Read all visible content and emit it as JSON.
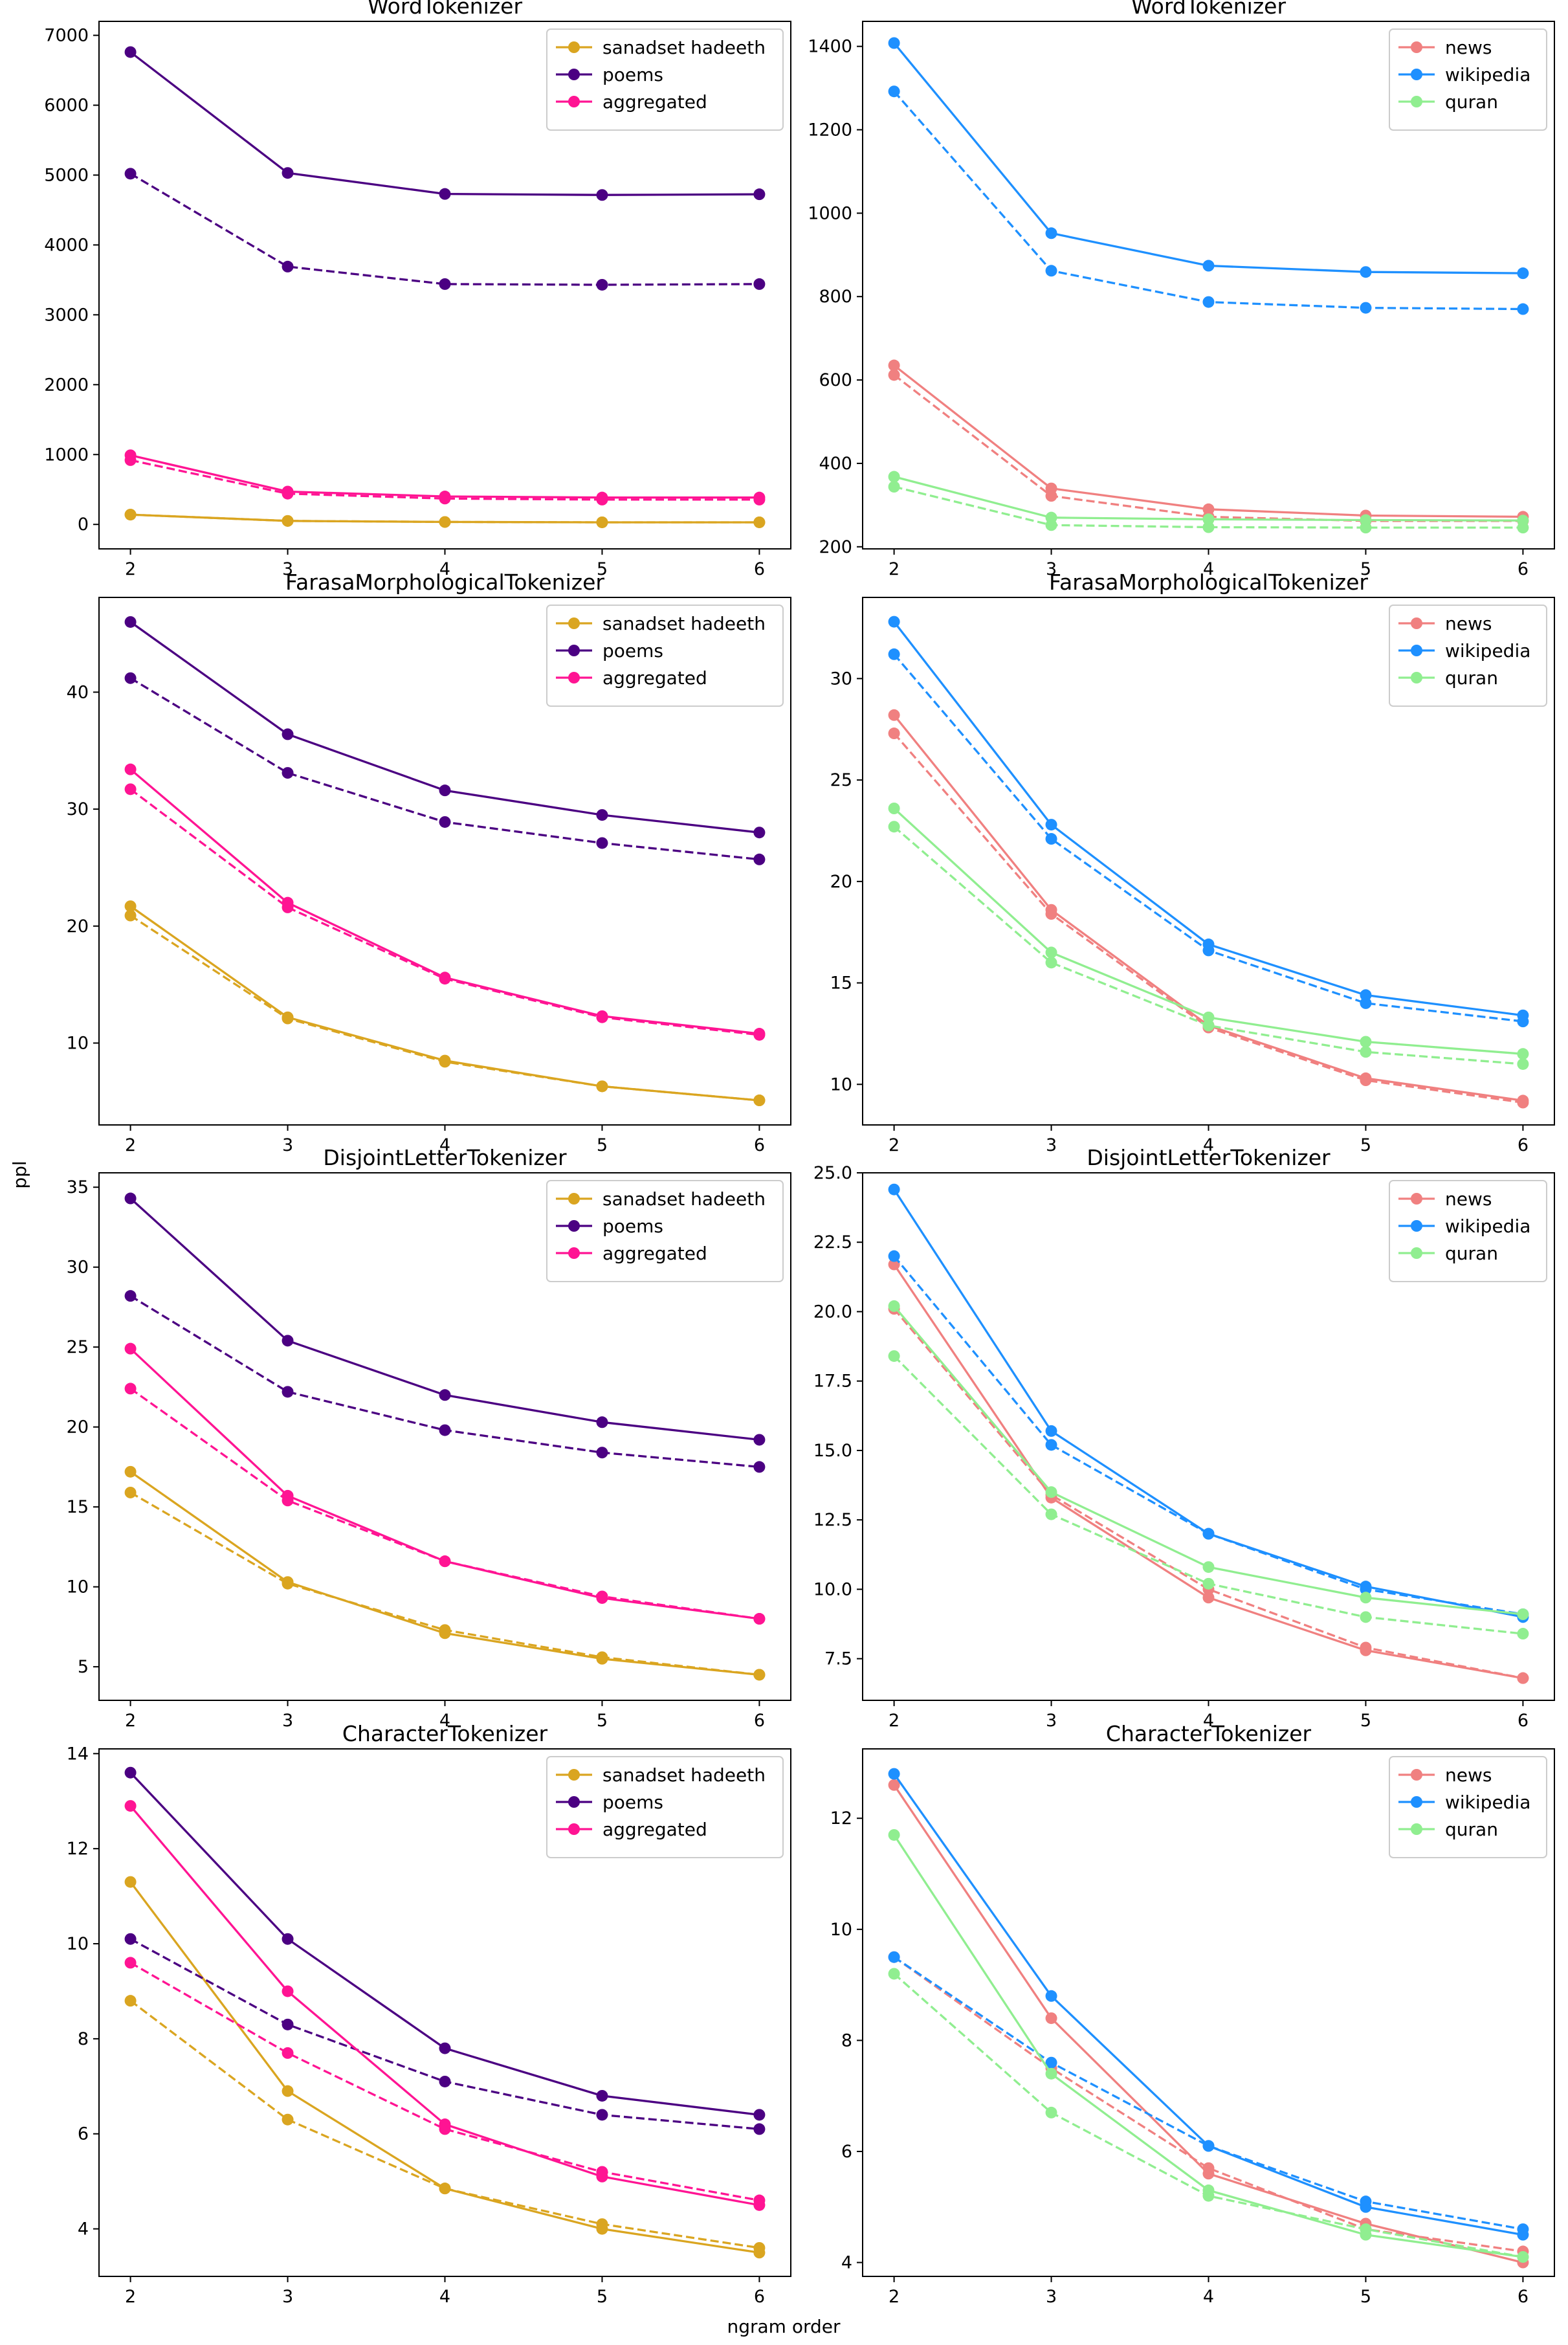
{
  "figure": {
    "ylabel": "ppl",
    "xlabel": "ngram order"
  },
  "chart_data": [
    {
      "type": "line",
      "title": "WordTokenizer",
      "x": [
        2,
        3,
        4,
        5,
        6
      ],
      "ylim": [
        -350,
        7200
      ],
      "yticks": [
        0,
        1000,
        2000,
        3000,
        4000,
        5000,
        6000,
        7000
      ],
      "series": [
        {
          "name": "sanadset hadeeth",
          "color": "#DAA520",
          "style": "solid",
          "values": [
            140,
            50,
            35,
            30,
            30
          ]
        },
        {
          "name": "sanadset hadeeth",
          "color": "#DAA520",
          "style": "dashed",
          "values": [
            140,
            50,
            35,
            30,
            30
          ]
        },
        {
          "name": "poems",
          "color": "#4B0082",
          "style": "solid",
          "values": [
            6760,
            5030,
            4730,
            4715,
            4725
          ]
        },
        {
          "name": "poems",
          "color": "#4B0082",
          "style": "dashed",
          "values": [
            5020,
            3690,
            3440,
            3430,
            3440
          ]
        },
        {
          "name": "aggregated",
          "color": "#FF1493",
          "style": "solid",
          "values": [
            990,
            470,
            400,
            385,
            385
          ]
        },
        {
          "name": "aggregated",
          "color": "#FF1493",
          "style": "dashed",
          "values": [
            920,
            440,
            370,
            355,
            355
          ]
        }
      ]
    },
    {
      "type": "line",
      "title": "WordTokenizer",
      "x": [
        2,
        3,
        4,
        5,
        6
      ],
      "ylim": [
        195,
        1460
      ],
      "yticks": [
        200,
        400,
        600,
        800,
        1000,
        1200,
        1400
      ],
      "series": [
        {
          "name": "news",
          "color": "#F08080",
          "style": "solid",
          "values": [
            635,
            340,
            290,
            275,
            272
          ]
        },
        {
          "name": "news",
          "color": "#F08080",
          "style": "dashed",
          "values": [
            612,
            322,
            272,
            262,
            262
          ]
        },
        {
          "name": "wikipedia",
          "color": "#1E90FF",
          "style": "solid",
          "values": [
            1408,
            952,
            874,
            859,
            856
          ]
        },
        {
          "name": "wikipedia",
          "color": "#1E90FF",
          "style": "dashed",
          "values": [
            1292,
            862,
            787,
            773,
            770
          ]
        },
        {
          "name": "quran",
          "color": "#90EE90",
          "style": "solid",
          "values": [
            368,
            270,
            266,
            264,
            263
          ]
        },
        {
          "name": "quran",
          "color": "#90EE90",
          "style": "dashed",
          "values": [
            344,
            252,
            247,
            246,
            246
          ]
        }
      ]
    },
    {
      "type": "line",
      "title": "FarasaMorphologicalTokenizer",
      "x": [
        2,
        3,
        4,
        5,
        6
      ],
      "ylim": [
        3,
        48.1
      ],
      "yticks": [
        10,
        20,
        30,
        40
      ],
      "series": [
        {
          "name": "sanadset hadeeth",
          "color": "#DAA520",
          "style": "solid",
          "values": [
            21.7,
            12.2,
            8.5,
            6.3,
            5.1
          ]
        },
        {
          "name": "sanadset hadeeth",
          "color": "#DAA520",
          "style": "dashed",
          "values": [
            20.9,
            12.1,
            8.4,
            6.3,
            5.1
          ]
        },
        {
          "name": "poems",
          "color": "#4B0082",
          "style": "solid",
          "values": [
            46.0,
            36.4,
            31.6,
            29.5,
            28.0
          ]
        },
        {
          "name": "poems",
          "color": "#4B0082",
          "style": "dashed",
          "values": [
            41.2,
            33.1,
            28.9,
            27.1,
            25.7
          ]
        },
        {
          "name": "aggregated",
          "color": "#FF1493",
          "style": "solid",
          "values": [
            33.4,
            22.0,
            15.6,
            12.3,
            10.8
          ]
        },
        {
          "name": "aggregated",
          "color": "#FF1493",
          "style": "dashed",
          "values": [
            31.7,
            21.6,
            15.5,
            12.2,
            10.7
          ]
        }
      ]
    },
    {
      "type": "line",
      "title": "FarasaMorphologicalTokenizer",
      "x": [
        2,
        3,
        4,
        5,
        6
      ],
      "ylim": [
        8.0,
        34.0
      ],
      "yticks": [
        10,
        15,
        20,
        25,
        30
      ],
      "series": [
        {
          "name": "news",
          "color": "#F08080",
          "style": "solid",
          "values": [
            28.2,
            18.6,
            12.9,
            10.3,
            9.2
          ]
        },
        {
          "name": "news",
          "color": "#F08080",
          "style": "dashed",
          "values": [
            27.3,
            18.4,
            12.8,
            10.2,
            9.1
          ]
        },
        {
          "name": "wikipedia",
          "color": "#1E90FF",
          "style": "solid",
          "values": [
            32.8,
            22.8,
            16.9,
            14.4,
            13.4
          ]
        },
        {
          "name": "wikipedia",
          "color": "#1E90FF",
          "style": "dashed",
          "values": [
            31.2,
            22.1,
            16.6,
            14.0,
            13.1
          ]
        },
        {
          "name": "quran",
          "color": "#90EE90",
          "style": "solid",
          "values": [
            23.6,
            16.5,
            13.3,
            12.1,
            11.5
          ]
        },
        {
          "name": "quran",
          "color": "#90EE90",
          "style": "dashed",
          "values": [
            22.7,
            16.0,
            12.9,
            11.6,
            11.0
          ]
        }
      ]
    },
    {
      "type": "line",
      "title": "DisjointLetterTokenizer",
      "x": [
        2,
        3,
        4,
        5,
        6
      ],
      "ylim": [
        2.9,
        35.9
      ],
      "yticks": [
        5,
        10,
        15,
        20,
        25,
        30,
        35
      ],
      "series": [
        {
          "name": "sanadset hadeeth",
          "color": "#DAA520",
          "style": "solid",
          "values": [
            17.2,
            10.3,
            7.1,
            5.5,
            4.5
          ]
        },
        {
          "name": "sanadset hadeeth",
          "color": "#DAA520",
          "style": "dashed",
          "values": [
            15.9,
            10.2,
            7.3,
            5.6,
            4.5
          ]
        },
        {
          "name": "poems",
          "color": "#4B0082",
          "style": "solid",
          "values": [
            34.3,
            25.4,
            22.0,
            20.3,
            19.2
          ]
        },
        {
          "name": "poems",
          "color": "#4B0082",
          "style": "dashed",
          "values": [
            28.2,
            22.2,
            19.8,
            18.4,
            17.5
          ]
        },
        {
          "name": "aggregated",
          "color": "#FF1493",
          "style": "solid",
          "values": [
            24.9,
            15.7,
            11.6,
            9.3,
            8.0
          ]
        },
        {
          "name": "aggregated",
          "color": "#FF1493",
          "style": "dashed",
          "values": [
            22.4,
            15.4,
            11.6,
            9.4,
            8.0
          ]
        }
      ]
    },
    {
      "type": "line",
      "title": "DisjointLetterTokenizer",
      "x": [
        2,
        3,
        4,
        5,
        6
      ],
      "ylim": [
        6.0,
        25.0
      ],
      "yticks": [
        7.5,
        10.0,
        12.5,
        15.0,
        17.5,
        20.0,
        22.5,
        25.0
      ],
      "series": [
        {
          "name": "news",
          "color": "#F08080",
          "style": "solid",
          "values": [
            21.7,
            13.3,
            9.7,
            7.8,
            6.8
          ]
        },
        {
          "name": "news",
          "color": "#F08080",
          "style": "dashed",
          "values": [
            20.1,
            13.4,
            10.0,
            7.9,
            6.8
          ]
        },
        {
          "name": "wikipedia",
          "color": "#1E90FF",
          "style": "solid",
          "values": [
            24.4,
            15.7,
            12.0,
            10.1,
            9.0
          ]
        },
        {
          "name": "wikipedia",
          "color": "#1E90FF",
          "style": "dashed",
          "values": [
            22.0,
            15.2,
            12.0,
            10.0,
            9.1
          ]
        },
        {
          "name": "quran",
          "color": "#90EE90",
          "style": "solid",
          "values": [
            20.2,
            13.5,
            10.8,
            9.7,
            9.1
          ]
        },
        {
          "name": "quran",
          "color": "#90EE90",
          "style": "dashed",
          "values": [
            18.4,
            12.7,
            10.2,
            9.0,
            8.4
          ]
        }
      ]
    },
    {
      "type": "line",
      "title": "CharacterTokenizer",
      "x": [
        2,
        3,
        4,
        5,
        6
      ],
      "ylim": [
        3.0,
        14.1
      ],
      "yticks": [
        4,
        6,
        8,
        10,
        12,
        14
      ],
      "series": [
        {
          "name": "sanadset hadeeth",
          "color": "#DAA520",
          "style": "solid",
          "values": [
            11.3,
            6.9,
            4.85,
            4.0,
            3.5
          ]
        },
        {
          "name": "sanadset hadeeth",
          "color": "#DAA520",
          "style": "dashed",
          "values": [
            8.8,
            6.3,
            4.85,
            4.1,
            3.6
          ]
        },
        {
          "name": "poems",
          "color": "#4B0082",
          "style": "solid",
          "values": [
            13.6,
            10.1,
            7.8,
            6.8,
            6.4
          ]
        },
        {
          "name": "poems",
          "color": "#4B0082",
          "style": "dashed",
          "values": [
            10.1,
            8.3,
            7.1,
            6.4,
            6.1
          ]
        },
        {
          "name": "aggregated",
          "color": "#FF1493",
          "style": "solid",
          "values": [
            12.9,
            9.0,
            6.2,
            5.1,
            4.5
          ]
        },
        {
          "name": "aggregated",
          "color": "#FF1493",
          "style": "dashed",
          "values": [
            9.6,
            7.7,
            6.1,
            5.2,
            4.6
          ]
        }
      ]
    },
    {
      "type": "line",
      "title": "CharacterTokenizer",
      "x": [
        2,
        3,
        4,
        5,
        6
      ],
      "ylim": [
        3.75,
        13.25
      ],
      "yticks": [
        4,
        6,
        8,
        10,
        12
      ],
      "series": [
        {
          "name": "news",
          "color": "#F08080",
          "style": "solid",
          "values": [
            12.6,
            8.4,
            5.6,
            4.7,
            4.0
          ]
        },
        {
          "name": "news",
          "color": "#F08080",
          "style": "dashed",
          "values": [
            9.5,
            7.5,
            5.7,
            4.6,
            4.2
          ]
        },
        {
          "name": "wikipedia",
          "color": "#1E90FF",
          "style": "solid",
          "values": [
            12.8,
            8.8,
            6.1,
            5.0,
            4.5
          ]
        },
        {
          "name": "wikipedia",
          "color": "#1E90FF",
          "style": "dashed",
          "values": [
            9.5,
            7.6,
            6.1,
            5.1,
            4.6
          ]
        },
        {
          "name": "quran",
          "color": "#90EE90",
          "style": "solid",
          "values": [
            11.7,
            7.4,
            5.3,
            4.5,
            4.1
          ]
        },
        {
          "name": "quran",
          "color": "#90EE90",
          "style": "dashed",
          "values": [
            9.2,
            6.7,
            5.2,
            4.6,
            4.1
          ]
        }
      ]
    }
  ]
}
